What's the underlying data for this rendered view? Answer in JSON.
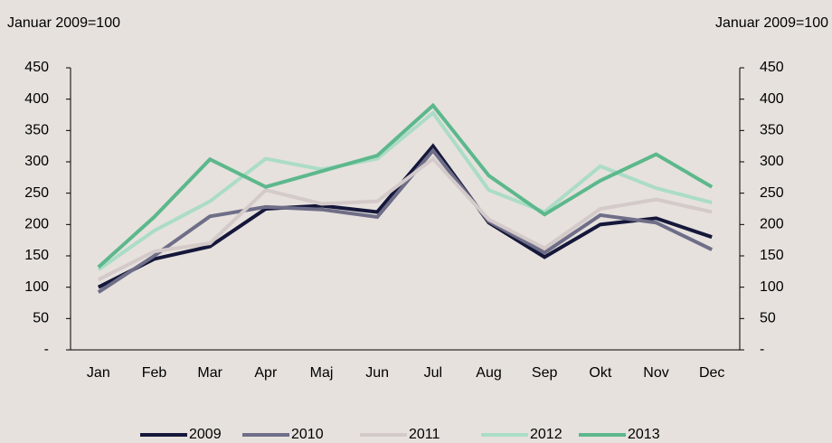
{
  "chart_data": {
    "type": "line",
    "y_axis_label": "Januar 2009=100",
    "y2_axis_label": "Januar 2009=100",
    "categories": [
      "Jan",
      "Feb",
      "Mar",
      "Apr",
      "Maj",
      "Jun",
      "Jul",
      "Aug",
      "Sep",
      "Okt",
      "Nov",
      "Dec"
    ],
    "series": [
      {
        "name": "2009",
        "color": "#15173a",
        "values": [
          100,
          145,
          165,
          225,
          230,
          220,
          325,
          203,
          148,
          200,
          210,
          180
        ]
      },
      {
        "name": "2010",
        "color": "#6f6e88",
        "values": [
          92,
          150,
          213,
          228,
          224,
          212,
          318,
          205,
          155,
          215,
          203,
          160
        ]
      },
      {
        "name": "2011",
        "color": "#d3cac9",
        "values": [
          112,
          157,
          170,
          255,
          233,
          237,
          305,
          208,
          162,
          225,
          240,
          220
        ]
      },
      {
        "name": "2012",
        "color": "#abdcc6",
        "values": [
          128,
          190,
          237,
          305,
          288,
          305,
          378,
          255,
          220,
          293,
          258,
          235
        ]
      },
      {
        "name": "2013",
        "color": "#5cb88c",
        "values": [
          132,
          212,
          304,
          260,
          285,
          310,
          390,
          278,
          216,
          270,
          312,
          260
        ]
      }
    ],
    "ylim": [
      0,
      450
    ],
    "yticks": [
      {
        "value": 0,
        "label": "-"
      },
      50,
      100,
      150,
      200,
      250,
      300,
      350,
      400,
      450
    ],
    "y2lim": [
      0,
      450
    ],
    "y2ticks": [
      {
        "value": 0,
        "label": "-"
      },
      50,
      100,
      150,
      200,
      250,
      300,
      350,
      400,
      450
    ],
    "legend": "bottom"
  }
}
